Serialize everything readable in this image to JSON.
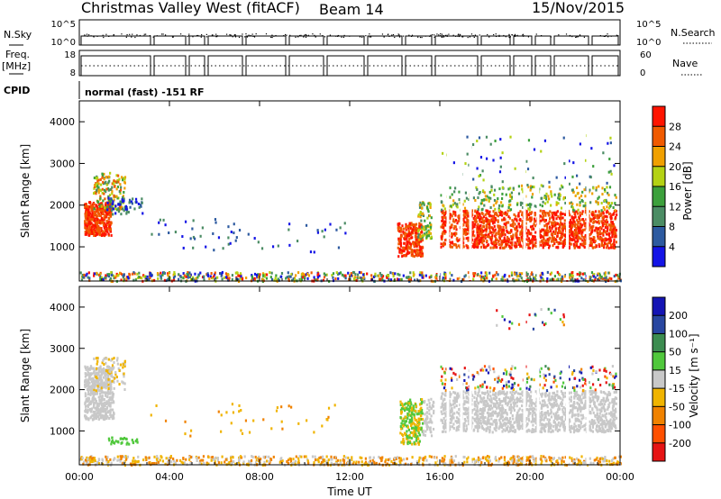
{
  "header": {
    "station": "Christmas Valley West (fitACF)",
    "beam": "Beam 14",
    "date": "15/Nov/2015",
    "cpid_text": "normal (fast) -151 RF"
  },
  "panels_text": {
    "nsky": "N.Sky",
    "nsearch": "N.Search",
    "freq_line1": "Freq.",
    "freq_line2": "[MHz]",
    "nave": "Nave",
    "cpid": "CPID",
    "nsky_ticks": [
      "10^5",
      "10^0"
    ],
    "nsearch_ticks": [
      "10^5",
      "10^0"
    ],
    "freq_ticks": [
      "18",
      "8"
    ],
    "nave_ticks": [
      "60",
      "0"
    ]
  },
  "colors": {
    "power": [
      "#1414e6",
      "#2d5aa0",
      "#4b8c64",
      "#3ca03c",
      "#b4d214",
      "#f0a000",
      "#f05a00",
      "#ff1400"
    ],
    "velocity": [
      "#1414b4",
      "#2846a0",
      "#3c8c50",
      "#50c83c",
      "#c8c8c8",
      "#f0b400",
      "#f08200",
      "#ff5000",
      "#e61414"
    ]
  },
  "chart_data": [
    {
      "type": "heatmap",
      "name": "power-panel",
      "ylabel": "Slant Range [km]",
      "xlabel": "",
      "x_ticks": [
        "00:00",
        "04:00",
        "08:00",
        "12:00",
        "16:00",
        "20:00",
        "00:00"
      ],
      "y_ticks": [
        1000,
        2000,
        3000,
        4000
      ],
      "ylim": [
        180,
        4500
      ],
      "colorbar": {
        "label": "Power [dB]",
        "ticks": [
          "4",
          "8",
          "12",
          "16",
          "20",
          "24",
          "28"
        ]
      }
    },
    {
      "type": "heatmap",
      "name": "velocity-panel",
      "ylabel": "Slant Range [km]",
      "xlabel": "Time UT",
      "x_ticks": [
        "00:00",
        "04:00",
        "08:00",
        "12:00",
        "16:00",
        "20:00",
        "00:00"
      ],
      "y_ticks": [
        1000,
        2000,
        3000,
        4000
      ],
      "ylim": [
        180,
        4500
      ],
      "colorbar": {
        "label": "Velocity [m s⁻¹]",
        "ticks": [
          "200",
          "100",
          "50",
          "15",
          "-15",
          "-50",
          "-100",
          "-200"
        ]
      }
    }
  ]
}
